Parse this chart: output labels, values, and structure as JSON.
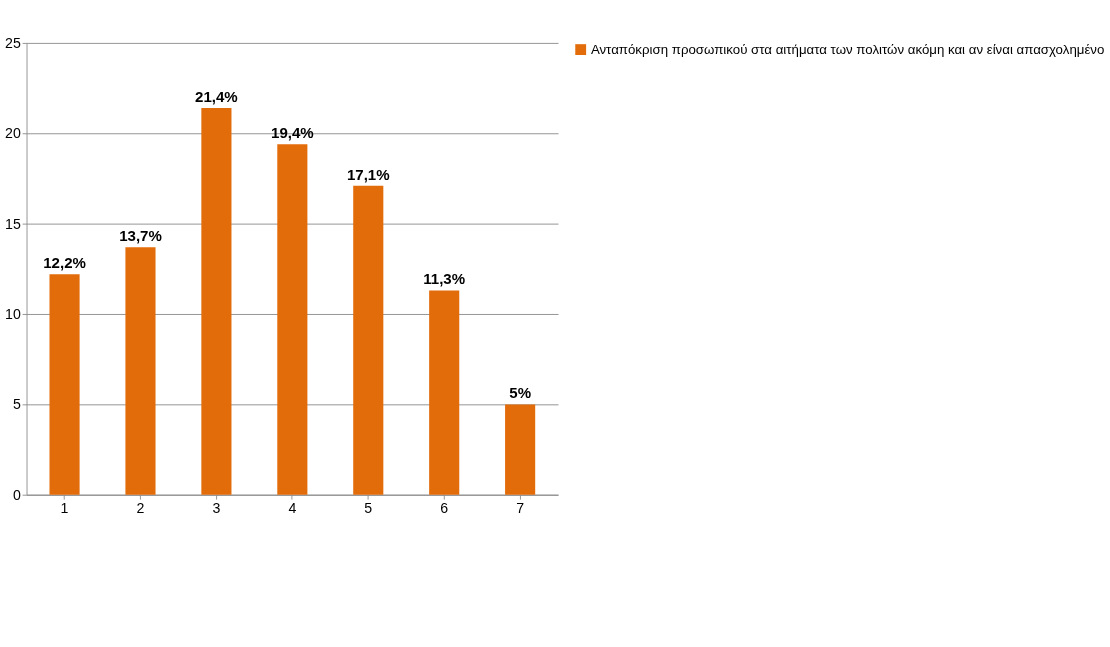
{
  "chart_data": {
    "type": "bar",
    "categories": [
      "1",
      "2",
      "3",
      "4",
      "5",
      "6",
      "7"
    ],
    "series": [
      {
        "name": "Ανταπόκριση προσωπικού στα αιτήματα των πολιτών ακόμη και αν είναι απασχολημένο",
        "color": "#e36c0a",
        "values": [
          12.2,
          13.7,
          21.4,
          19.4,
          17.1,
          11.3,
          5
        ],
        "value_labels": [
          "12,2%",
          "13,7%",
          "21,4%",
          "19,4%",
          "17,1%",
          "11,3%",
          "5%"
        ]
      }
    ],
    "ylim": [
      0,
      25
    ],
    "yticks": [
      0,
      5,
      10,
      15,
      20,
      25
    ],
    "grid": "y",
    "legend": "right"
  }
}
